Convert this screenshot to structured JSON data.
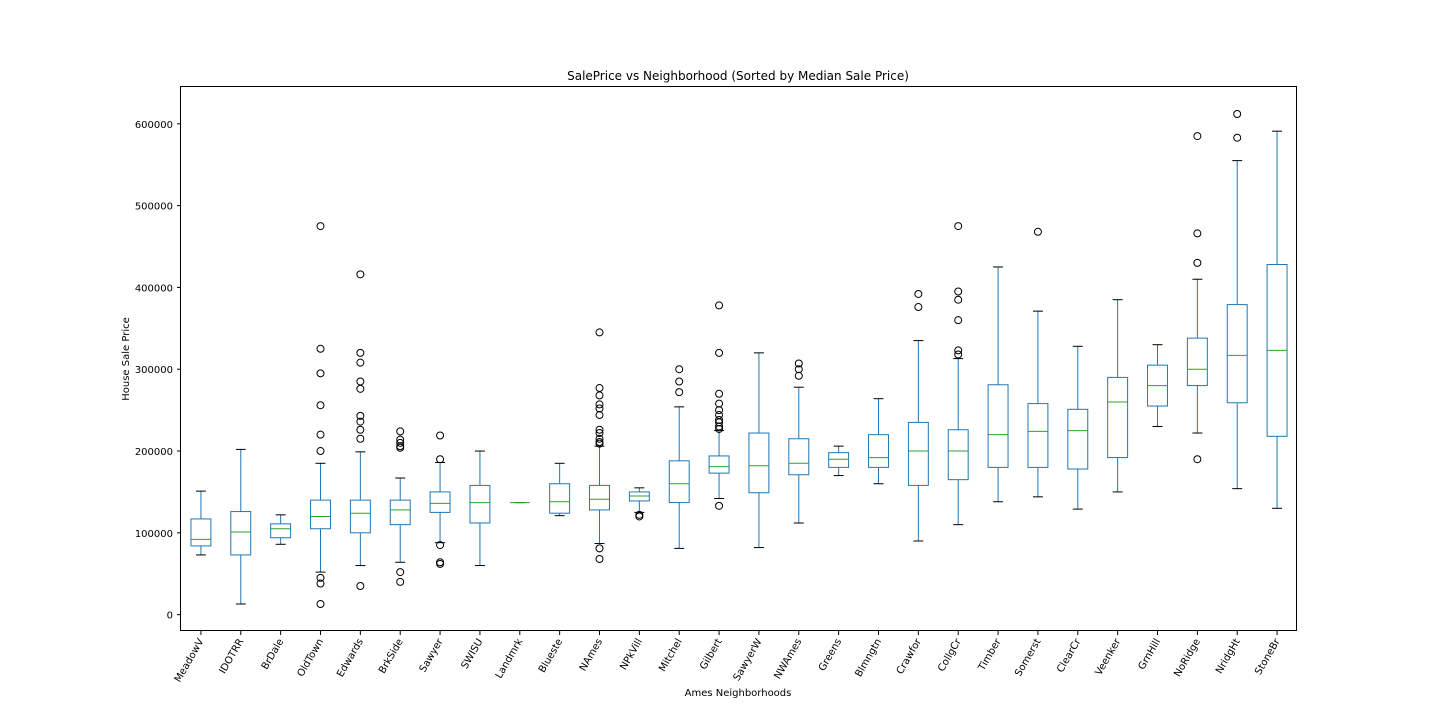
{
  "chart_data": {
    "type": "box",
    "title": "SalePrice vs Neighborhood (Sorted by Median Sale Price)",
    "xlabel": "Ames Neighborhoods",
    "ylabel": "House Sale Price",
    "ylim": [
      -20000,
      645000
    ],
    "yticks": [
      0,
      100000,
      200000,
      300000,
      400000,
      500000,
      600000
    ],
    "ytick_labels": [
      "0",
      "100000",
      "200000",
      "300000",
      "400000",
      "500000",
      "600000"
    ],
    "grid": false,
    "colors": {
      "box": "#1f77b4",
      "median": "#2ca02c",
      "whisker": "#1f77b4",
      "cap": "#000000",
      "flier": "#000000"
    },
    "categories": [
      "MeadowV",
      "IDOTRR",
      "BrDale",
      "OldTown",
      "Edwards",
      "BrkSide",
      "Sawyer",
      "SWISU",
      "Landmrk",
      "Blueste",
      "NAmes",
      "NPkVill",
      "Mitchel",
      "Gilbert",
      "SawyerW",
      "NWAmes",
      "Greens",
      "Blmngtn",
      "Crawfor",
      "CollgCr",
      "Timber",
      "Somerst",
      "ClearCr",
      "Veenker",
      "GrnHill",
      "NoRidge",
      "NridgHt",
      "StoneBr"
    ],
    "boxes": [
      {
        "whislo": 73000,
        "q1": 84000,
        "med": 92000,
        "q3": 117000,
        "whishi": 151000,
        "fliers": []
      },
      {
        "whislo": 13000,
        "q1": 73000,
        "med": 101000,
        "q3": 126000,
        "whishi": 202000,
        "fliers": []
      },
      {
        "whislo": 86000,
        "q1": 94000,
        "med": 105000,
        "q3": 111000,
        "whishi": 122000,
        "fliers": []
      },
      {
        "whislo": 52000,
        "q1": 105000,
        "med": 120000,
        "q3": 140000,
        "whishi": 185000,
        "fliers": [
          475000,
          325000,
          295000,
          256000,
          220000,
          200000,
          45000,
          38000,
          13000
        ]
      },
      {
        "whislo": 60000,
        "q1": 100000,
        "med": 124000,
        "q3": 140000,
        "whishi": 199000,
        "fliers": [
          416000,
          320000,
          308000,
          285000,
          276000,
          243000,
          236000,
          226000,
          215000,
          35000
        ]
      },
      {
        "whislo": 64000,
        "q1": 110000,
        "med": 128000,
        "q3": 140000,
        "whishi": 167000,
        "fliers": [
          224000,
          214000,
          210000,
          206000,
          204000,
          52000,
          40000
        ]
      },
      {
        "whislo": 88000,
        "q1": 125000,
        "med": 136000,
        "q3": 150000,
        "whishi": 186000,
        "fliers": [
          219000,
          190000,
          85000,
          64000,
          62000
        ]
      },
      {
        "whislo": 60000,
        "q1": 112000,
        "med": 137000,
        "q3": 158000,
        "whishi": 200000,
        "fliers": []
      },
      {
        "whislo": 137000,
        "q1": 137000,
        "med": 137000,
        "q3": 137000,
        "whishi": 137000,
        "fliers": []
      },
      {
        "whislo": 121000,
        "q1": 124000,
        "med": 138000,
        "q3": 160000,
        "whishi": 185000,
        "fliers": []
      },
      {
        "whislo": 87000,
        "q1": 128000,
        "med": 141000,
        "q3": 158000,
        "whishi": 206000,
        "fliers": [
          345000,
          277000,
          268000,
          257000,
          252000,
          244000,
          226000,
          222000,
          215000,
          211000,
          209000,
          81000,
          68000
        ]
      },
      {
        "whislo": 125000,
        "q1": 139000,
        "med": 145000,
        "q3": 150000,
        "whishi": 155000,
        "fliers": [
          122000,
          120000
        ]
      },
      {
        "whislo": 81000,
        "q1": 137000,
        "med": 160000,
        "q3": 188000,
        "whishi": 254000,
        "fliers": [
          300000,
          285000,
          272000
        ]
      },
      {
        "whislo": 142000,
        "q1": 173000,
        "med": 181000,
        "q3": 194000,
        "whishi": 225000,
        "fliers": [
          378000,
          320000,
          270000,
          258000,
          250000,
          244000,
          238000,
          235000,
          230000,
          227000,
          133000
        ]
      },
      {
        "whislo": 82000,
        "q1": 149000,
        "med": 182000,
        "q3": 222000,
        "whishi": 320000,
        "fliers": []
      },
      {
        "whislo": 112000,
        "q1": 171000,
        "med": 185000,
        "q3": 215000,
        "whishi": 278000,
        "fliers": [
          307000,
          300000,
          292000
        ]
      },
      {
        "whislo": 170000,
        "q1": 180000,
        "med": 190000,
        "q3": 198000,
        "whishi": 206000,
        "fliers": []
      },
      {
        "whislo": 160000,
        "q1": 180000,
        "med": 192000,
        "q3": 220000,
        "whishi": 264000,
        "fliers": []
      },
      {
        "whislo": 90000,
        "q1": 158000,
        "med": 200000,
        "q3": 235000,
        "whishi": 335000,
        "fliers": [
          392000,
          376000
        ]
      },
      {
        "whislo": 110000,
        "q1": 165000,
        "med": 200000,
        "q3": 226000,
        "whishi": 313000,
        "fliers": [
          475000,
          395000,
          385000,
          360000,
          323000,
          318000
        ]
      },
      {
        "whislo": 138000,
        "q1": 180000,
        "med": 220000,
        "q3": 281000,
        "whishi": 425000,
        "fliers": []
      },
      {
        "whislo": 144000,
        "q1": 180000,
        "med": 224000,
        "q3": 258000,
        "whishi": 371000,
        "fliers": [
          468000
        ]
      },
      {
        "whislo": 129000,
        "q1": 178000,
        "med": 225000,
        "q3": 251000,
        "whishi": 328000,
        "fliers": []
      },
      {
        "whislo": 150000,
        "q1": 192000,
        "med": 260000,
        "q3": 290000,
        "whishi": 385000,
        "fliers": []
      },
      {
        "whislo": 230000,
        "q1": 255000,
        "med": 280000,
        "q3": 305000,
        "whishi": 330000,
        "fliers": []
      },
      {
        "whislo": 222000,
        "q1": 280000,
        "med": 300000,
        "q3": 338000,
        "whishi": 410000,
        "fliers": [
          585000,
          466000,
          430000,
          190000
        ]
      },
      {
        "whislo": 154000,
        "q1": 259000,
        "med": 317000,
        "q3": 379000,
        "whishi": 555000,
        "fliers": [
          612000,
          583000
        ]
      },
      {
        "whislo": 130000,
        "q1": 218000,
        "med": 323000,
        "q3": 428000,
        "whishi": 591000,
        "fliers": []
      }
    ]
  }
}
